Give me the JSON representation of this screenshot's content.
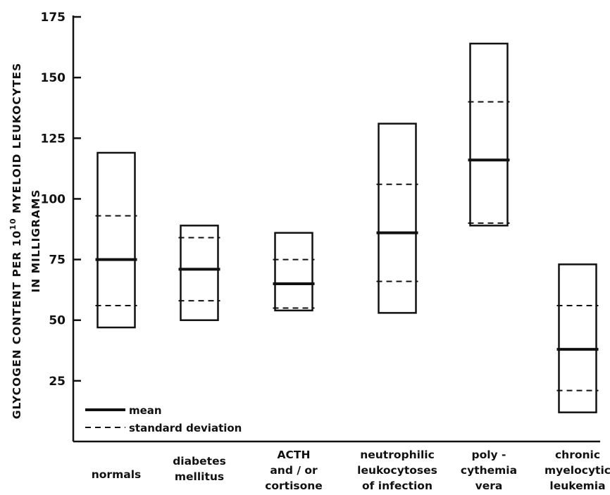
{
  "chart_data": {
    "type": "range-bar",
    "ylabel_lines": [
      "GLYCOGEN  CONTENT  PER  10^10  MYELOID  LEUKOCYTES",
      "IN  MILLIGRAMS"
    ],
    "ylim": [
      0,
      175
    ],
    "yticks": [
      "25",
      "50",
      "75",
      "100",
      "125",
      "150",
      "175"
    ],
    "ytick_values": [
      25,
      50,
      75,
      100,
      125,
      150,
      175
    ],
    "categories": [
      {
        "lines": [
          "normals"
        ],
        "min": 47,
        "max": 119,
        "mean": 75,
        "sd_low": 56,
        "sd_high": 93
      },
      {
        "lines": [
          "diabetes",
          "mellitus"
        ],
        "min": 50,
        "max": 89,
        "mean": 71,
        "sd_low": 58,
        "sd_high": 84
      },
      {
        "lines": [
          "ACTH",
          "and / or",
          "cortisone"
        ],
        "min": 54,
        "max": 86,
        "mean": 65,
        "sd_low": 55,
        "sd_high": 75
      },
      {
        "lines": [
          "neutrophilic",
          "leukocytoses",
          "of infection"
        ],
        "min": 53,
        "max": 131,
        "mean": 86,
        "sd_low": 66,
        "sd_high": 106
      },
      {
        "lines": [
          "poly -",
          "cythemia",
          "vera"
        ],
        "min": 89,
        "max": 164,
        "mean": 116,
        "sd_low": 90,
        "sd_high": 140
      },
      {
        "lines": [
          "chronic",
          "myelocytic",
          "leukemia"
        ],
        "min": 12,
        "max": 73,
        "mean": 38,
        "sd_low": 21,
        "sd_high": 56
      }
    ],
    "legend": {
      "position": "bottom-left",
      "mean_label": "mean",
      "sd_label": "standard deviation"
    },
    "grid": false
  }
}
